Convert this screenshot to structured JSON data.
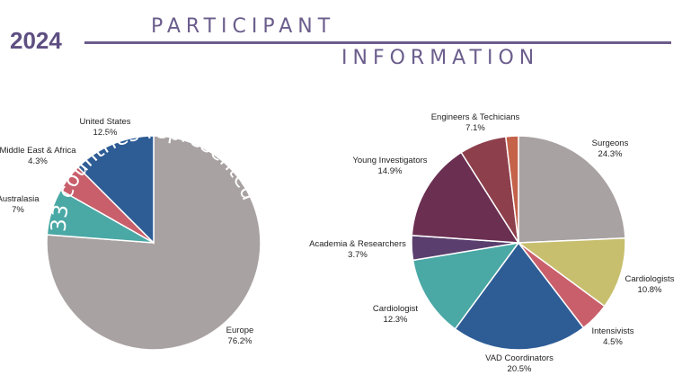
{
  "header": {
    "year": "2024",
    "title_line1": "PARTICIPANT",
    "title_line2": "INFORMATION"
  },
  "chart_data": [
    {
      "type": "pie",
      "annotation": "33 countries represented",
      "slices": [
        {
          "label": "Europe",
          "value": 76.2,
          "display": "76.2%",
          "color": "#a9a2a2"
        },
        {
          "label": "Australasia",
          "value": 7,
          "display": "7%",
          "color": "#4aa8a5"
        },
        {
          "label": "Middle East & Africa",
          "value": 4.3,
          "display": "4.3%",
          "color": "#c95f6b"
        },
        {
          "label": "United States",
          "value": 12.5,
          "display": "12.5%",
          "color": "#2e5d96"
        }
      ]
    },
    {
      "type": "pie",
      "slices": [
        {
          "label": "Surgeons",
          "value": 24.3,
          "display": "24.3%",
          "color": "#a9a2a2"
        },
        {
          "label": "Cardiologists",
          "value": 10.8,
          "display": "10.8%",
          "color": "#c8bf6e"
        },
        {
          "label": "Intensivists",
          "value": 4.5,
          "display": "4.5%",
          "color": "#c95f6b"
        },
        {
          "label": "VAD Coordinators",
          "value": 20.5,
          "display": "20.5%",
          "color": "#2e5d96"
        },
        {
          "label": "Cardiologist",
          "value": 12.3,
          "display": "12.3%",
          "color": "#4aa8a5"
        },
        {
          "label": "Academia & Researchers",
          "value": 3.7,
          "display": "3.7%",
          "color": "#5a3f6e"
        },
        {
          "label": "Young Investigators",
          "value": 14.9,
          "display": "14.9%",
          "color": "#6b2f52"
        },
        {
          "label": "Engineers & Techicians",
          "value": 7.1,
          "display": "7.1%",
          "color": "#8e3f4c"
        },
        {
          "label": "",
          "value": 1.9,
          "display": "",
          "color": "#c4624a"
        }
      ]
    }
  ]
}
